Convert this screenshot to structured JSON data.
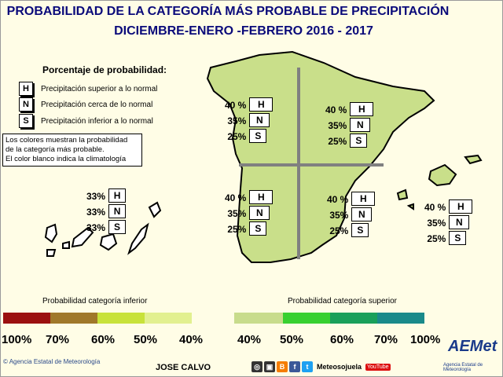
{
  "title": {
    "line1": "PROBABILIDAD DE LA CATEGORÍA MÁS PROBABLE DE PRECIPITACIÓN",
    "line2": "DICIEMBRE-ENERO -FEBRERO  2016 - 2017"
  },
  "legend": {
    "heading": "Porcentaje de probabilidad:",
    "items": [
      {
        "key": "H",
        "label": "Precipitación superior a lo normal"
      },
      {
        "key": "N",
        "label": "Precipitación cerca de lo normal"
      },
      {
        "key": "S",
        "label": "Precipitación inferior a lo normal"
      }
    ]
  },
  "note": {
    "line1": "Los colores muestran la probabilidad",
    "line2": "de la categoría más probable.",
    "line3": "El color blanco indica la climatología"
  },
  "regions": {
    "northwest": {
      "h": "40 %",
      "n": "35%",
      "s": "25%"
    },
    "northeast": {
      "h": "40 %",
      "n": "35%",
      "s": "25%"
    },
    "southwest": {
      "h": "40 %",
      "n": "35%",
      "s": "25%"
    },
    "southeast": {
      "h": "40 %",
      "n": "35%",
      "s": "25%"
    },
    "balearics": {
      "h": "40 %",
      "n": "35%",
      "s": "25%"
    },
    "canarias": {
      "h": "33%",
      "n": "33%",
      "s": "33%"
    }
  },
  "box_letters": {
    "h": "H",
    "n": "N",
    "s": "S"
  },
  "scale": {
    "lower_label": "Probabilidad categoría inferior",
    "upper_label": "Probabilidad categoría superior",
    "lower_ticks": [
      "100%",
      "70%",
      "60%",
      "50%",
      "40%"
    ],
    "upper_ticks": [
      "40%",
      "50%",
      "60%",
      "70%",
      "100%"
    ],
    "lower_colors": [
      "#9b1010",
      "#a0782a",
      "#c8e23a",
      "#e2f090",
      "#ffffff"
    ],
    "upper_colors": [
      "#c8dc8c",
      "#38d030",
      "#1aa05a",
      "#1a8a8a"
    ]
  },
  "colors": {
    "land_fill": "#c9df8a",
    "title": "#0a0a7a",
    "divider": "#808080"
  },
  "footer": {
    "agency": "Agencia Estatal de Meteorología",
    "author": "JOSE CALVO",
    "social_handle": "Meteosojuela",
    "youtube": "YouTube",
    "logo": "AEMet",
    "logo_sub": "Agencia Estatal de Meteorología"
  }
}
